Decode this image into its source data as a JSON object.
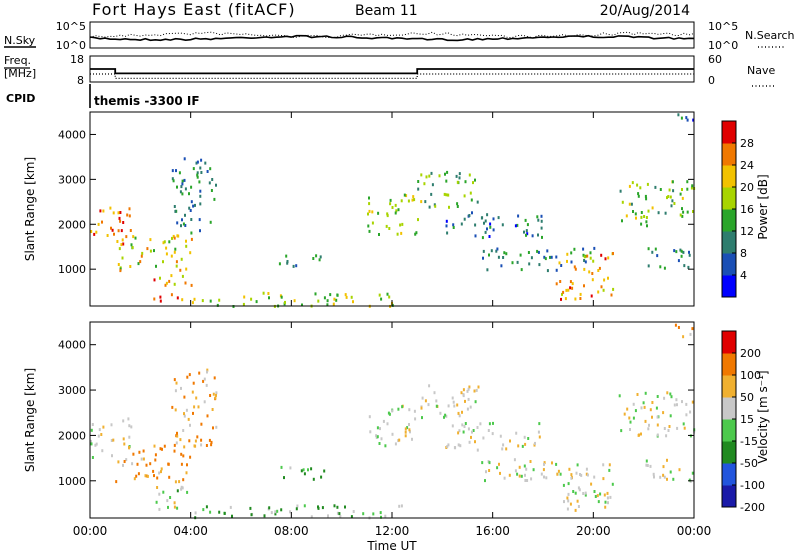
{
  "header": {
    "station": "Fort Hays East (fitACF)",
    "beam": "Beam 11",
    "date": "20/Aug/2014"
  },
  "sky_panel": {
    "left_label": "N.Sky",
    "right_label": "N.Search",
    "left_ticks": [
      "10^5",
      "10^0"
    ],
    "right_ticks": [
      "10^5",
      "10^0"
    ]
  },
  "freq_panel": {
    "left_label_1": "Freq.",
    "left_label_2": "[MHz]",
    "right_label": "Nave",
    "left_ticks": [
      "18",
      "8"
    ],
    "right_ticks": [
      "60",
      "0"
    ]
  },
  "cpid": {
    "label": "CPID",
    "value": "themis -3300 IF"
  },
  "power_panel": {
    "ylabel": "Slant Range [km]",
    "yticks": [
      "4000",
      "3000",
      "2000",
      "1000"
    ],
    "colorbar_label": "Power [dB]",
    "colorbar_ticks": [
      "28",
      "24",
      "20",
      "16",
      "12",
      "8",
      "4"
    ],
    "colors": [
      "#0000ff",
      "#1a4fb5",
      "#2e7d6e",
      "#2aa52a",
      "#a8d400",
      "#f2c200",
      "#f07800",
      "#e00000"
    ]
  },
  "velocity_panel": {
    "ylabel": "Slant Range [km]",
    "yticks": [
      "4000",
      "3000",
      "2000",
      "1000"
    ],
    "colorbar_label": "Velocity [m s⁻¹]",
    "colorbar_ticks": [
      "200",
      "100",
      "50",
      "15",
      "-15",
      "-50",
      "-100",
      "-200"
    ],
    "colors": [
      "#1a1aa8",
      "#2255dd",
      "#208a20",
      "#4cc94c",
      "#c8c8c8",
      "#f0b030",
      "#f07800",
      "#e00000"
    ]
  },
  "xaxis": {
    "label": "Time UT",
    "ticks": [
      "00:00",
      "04:00",
      "08:00",
      "12:00",
      "16:00",
      "20:00",
      "00:00"
    ]
  },
  "chart_data": {
    "type": "heatmap",
    "x_range_hours": [
      0,
      24
    ],
    "y_range_km": [
      180,
      4500
    ],
    "frequency_mhz": [
      {
        "start_h": 0,
        "end_h": 1,
        "value": 13
      },
      {
        "start_h": 1,
        "end_h": 13,
        "value": 11
      },
      {
        "start_h": 13,
        "end_h": 24,
        "value": 13
      }
    ],
    "echo_regions": [
      {
        "t0": 0.0,
        "t1": 1.6,
        "r0": 1500,
        "r1": 2400,
        "power": 26,
        "velocity": 0
      },
      {
        "t0": 1.0,
        "t1": 4.2,
        "r0": 1000,
        "r1": 1800,
        "power": 20,
        "velocity": -40
      },
      {
        "t0": 3.2,
        "t1": 5.0,
        "r0": 1800,
        "r1": 3500,
        "power": 10,
        "velocity": -30
      },
      {
        "t0": 2.5,
        "t1": 4.0,
        "r0": 300,
        "r1": 900,
        "power": 24,
        "velocity": 5
      },
      {
        "t0": 4.0,
        "t1": 12.5,
        "r0": 200,
        "r1": 500,
        "power": 18,
        "velocity": 25
      },
      {
        "t0": 7.5,
        "t1": 9.5,
        "r0": 1050,
        "r1": 1350,
        "power": 10,
        "velocity": 30
      },
      {
        "t0": 11.0,
        "t1": 13.2,
        "r0": 1800,
        "r1": 2700,
        "power": 18,
        "velocity": 5
      },
      {
        "t0": 13.0,
        "t1": 15.5,
        "r0": 2400,
        "r1": 3200,
        "power": 14,
        "velocity": 0
      },
      {
        "t0": 14.0,
        "t1": 18.0,
        "r0": 1700,
        "r1": 2300,
        "power": 9,
        "velocity": 0
      },
      {
        "t0": 15.5,
        "t1": 20.0,
        "r0": 1000,
        "r1": 1500,
        "power": 10,
        "velocity": 0
      },
      {
        "t0": 18.5,
        "t1": 20.8,
        "r0": 350,
        "r1": 1400,
        "power": 24,
        "velocity": 0
      },
      {
        "t0": 21.0,
        "t1": 24.0,
        "r0": 2000,
        "r1": 3000,
        "power": 16,
        "velocity": 0
      },
      {
        "t0": 22.0,
        "t1": 24.0,
        "r0": 1000,
        "r1": 1500,
        "power": 10,
        "velocity": 0
      },
      {
        "t0": 23.0,
        "t1": 24.0,
        "r0": 4200,
        "r1": 4500,
        "power": 8,
        "velocity": -20
      }
    ]
  }
}
